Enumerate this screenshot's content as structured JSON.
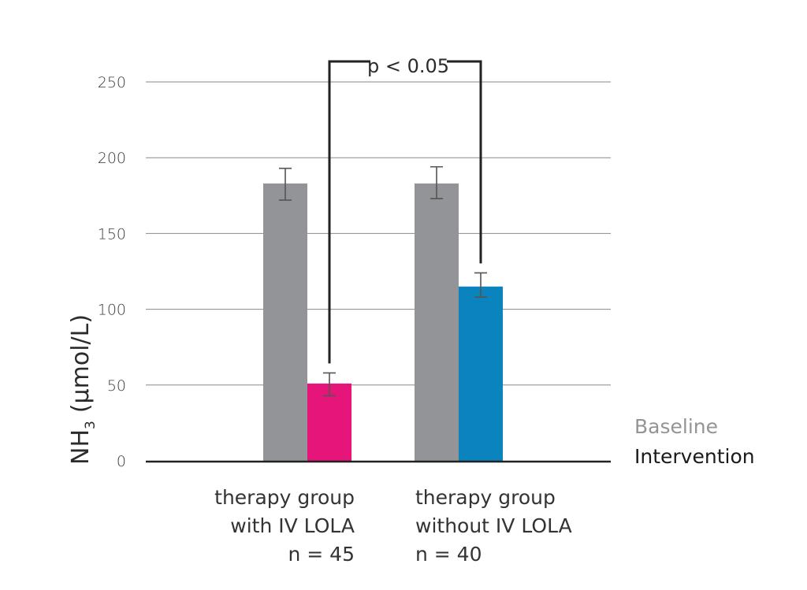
{
  "chart_data": {
    "type": "bar",
    "title": "",
    "xlabel": "",
    "ylabel": "NH",
    "ylabel_subscript": "3",
    "ylabel_unit": "(µmol/L)",
    "ylim": [
      0,
      250
    ],
    "yticks": [
      0,
      50,
      100,
      150,
      200,
      250
    ],
    "grid": true,
    "groups": [
      {
        "label_line1": "therapy group",
        "label_line2": "with IV LOLA",
        "label_line2_color": "#e5157a",
        "n_label": "n = 45",
        "baseline": {
          "value": 183,
          "err_low": 172,
          "err_high": 193
        },
        "intervention": {
          "value": 51,
          "err_low": 43,
          "err_high": 58,
          "color": "#e5157a"
        }
      },
      {
        "label_line1": "therapy group",
        "label_line2": "without IV LOLA",
        "label_line2_color": "#0b83bd",
        "n_label": "n = 40",
        "baseline": {
          "value": 183,
          "err_low": 173,
          "err_high": 194
        },
        "intervention": {
          "value": 115,
          "err_low": 108,
          "err_high": 124,
          "color": "#0b83bd"
        }
      }
    ],
    "series": [
      {
        "name": "Baseline",
        "color": "#939498",
        "values": [
          183,
          183
        ]
      },
      {
        "name": "Intervention",
        "color": "#1a1a1a",
        "values": [
          51,
          115
        ]
      }
    ],
    "annotation": {
      "text": "p < 0.05",
      "between": [
        "with IV LOLA intervention",
        "without IV LOLA intervention"
      ]
    },
    "legend_position": "bottom-right"
  },
  "colors": {
    "baseline_bar": "#939498",
    "grid": "#8a8a8a",
    "axis": "#222222"
  }
}
